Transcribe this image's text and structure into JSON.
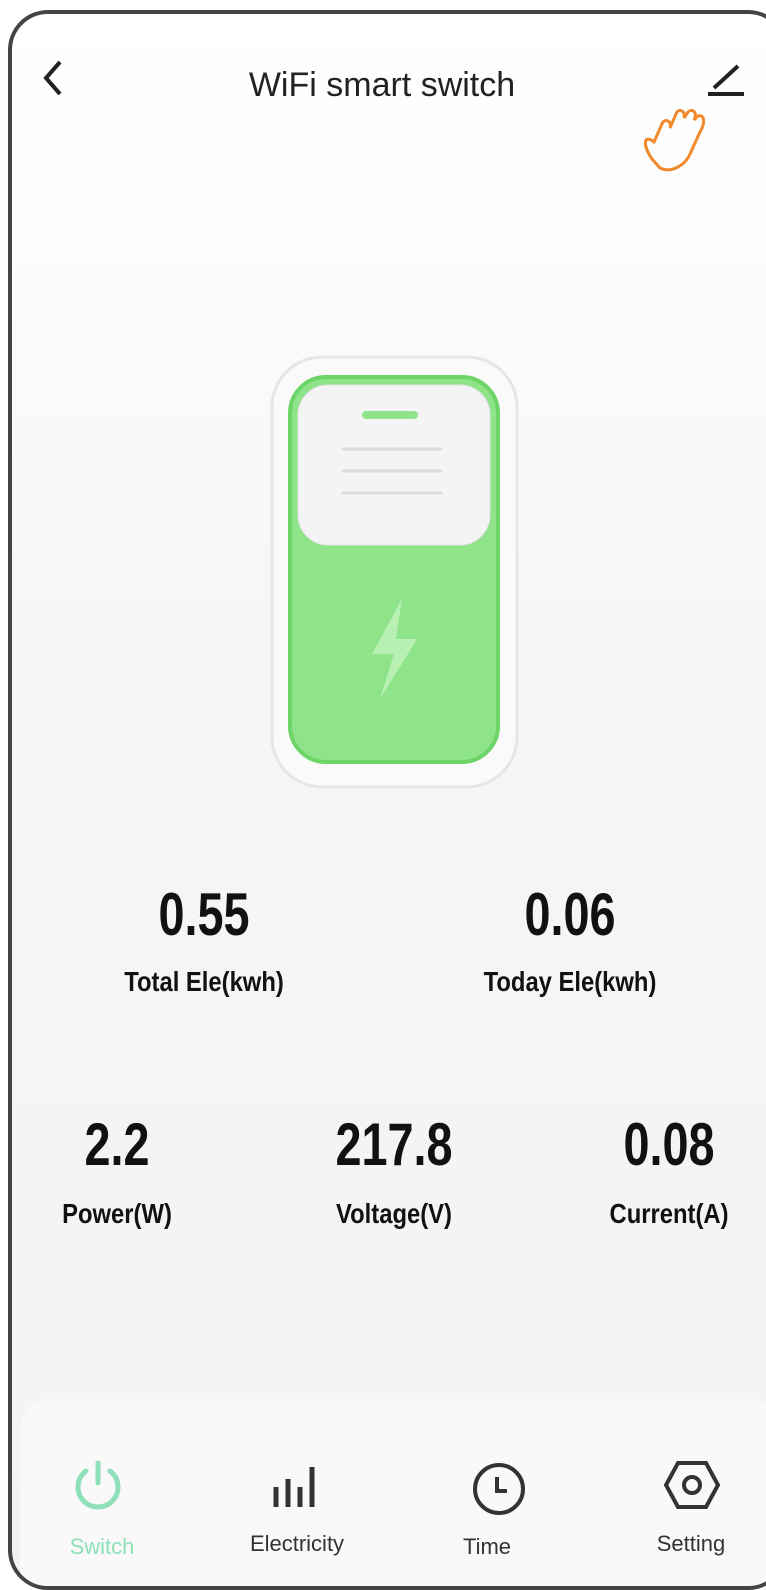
{
  "header": {
    "title": "WiFi smart switch"
  },
  "stats": [
    {
      "value": "0.55",
      "label": "Total Ele(kwh)"
    },
    {
      "value": "0.06",
      "label": "Today Ele(kwh)"
    },
    {
      "value": "2.2",
      "label": "Power(W)"
    },
    {
      "value": "217.8",
      "label": "Voltage(V)"
    },
    {
      "value": "0.08",
      "label": "Current(A)"
    }
  ],
  "tabs": [
    {
      "label": "Switch"
    },
    {
      "label": "Electricity"
    },
    {
      "label": "Time"
    },
    {
      "label": "Setting"
    }
  ]
}
